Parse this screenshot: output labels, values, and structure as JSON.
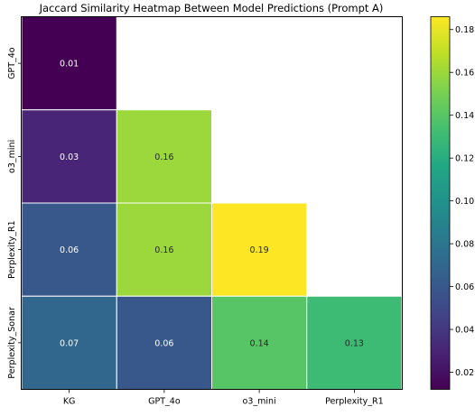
{
  "chart_data": {
    "type": "heatmap",
    "title": "Jaccard Similarity Heatmap Between Model Predictions (Prompt A)",
    "x_categories": [
      "KG",
      "GPT_4o",
      "o3_mini",
      "Perplexity_R1"
    ],
    "y_categories": [
      "GPT_4o",
      "o3_mini",
      "Perplexity_R1",
      "Perplexity_Sonar"
    ],
    "mask": "upper-triangle",
    "cells": [
      {
        "row": 0,
        "col": 0,
        "value": 0.01,
        "label": "0.01"
      },
      {
        "row": 1,
        "col": 0,
        "value": 0.03,
        "label": "0.03"
      },
      {
        "row": 1,
        "col": 1,
        "value": 0.16,
        "label": "0.16"
      },
      {
        "row": 2,
        "col": 0,
        "value": 0.06,
        "label": "0.06"
      },
      {
        "row": 2,
        "col": 1,
        "value": 0.16,
        "label": "0.16"
      },
      {
        "row": 2,
        "col": 2,
        "value": 0.19,
        "label": "0.19"
      },
      {
        "row": 3,
        "col": 0,
        "value": 0.07,
        "label": "0.07"
      },
      {
        "row": 3,
        "col": 1,
        "value": 0.06,
        "label": "0.06"
      },
      {
        "row": 3,
        "col": 2,
        "value": 0.14,
        "label": "0.14"
      },
      {
        "row": 3,
        "col": 3,
        "value": 0.13,
        "label": "0.13"
      }
    ],
    "colorbar": {
      "colormap": "viridis",
      "range": [
        0.012,
        0.186
      ],
      "ticks": [
        0.02,
        0.04,
        0.06,
        0.08,
        0.1,
        0.12,
        0.14,
        0.16,
        0.18
      ],
      "tick_labels": [
        "0.02",
        "0.04",
        "0.06",
        "0.08",
        "0.10",
        "0.12",
        "0.14",
        "0.16",
        "0.18"
      ]
    }
  }
}
